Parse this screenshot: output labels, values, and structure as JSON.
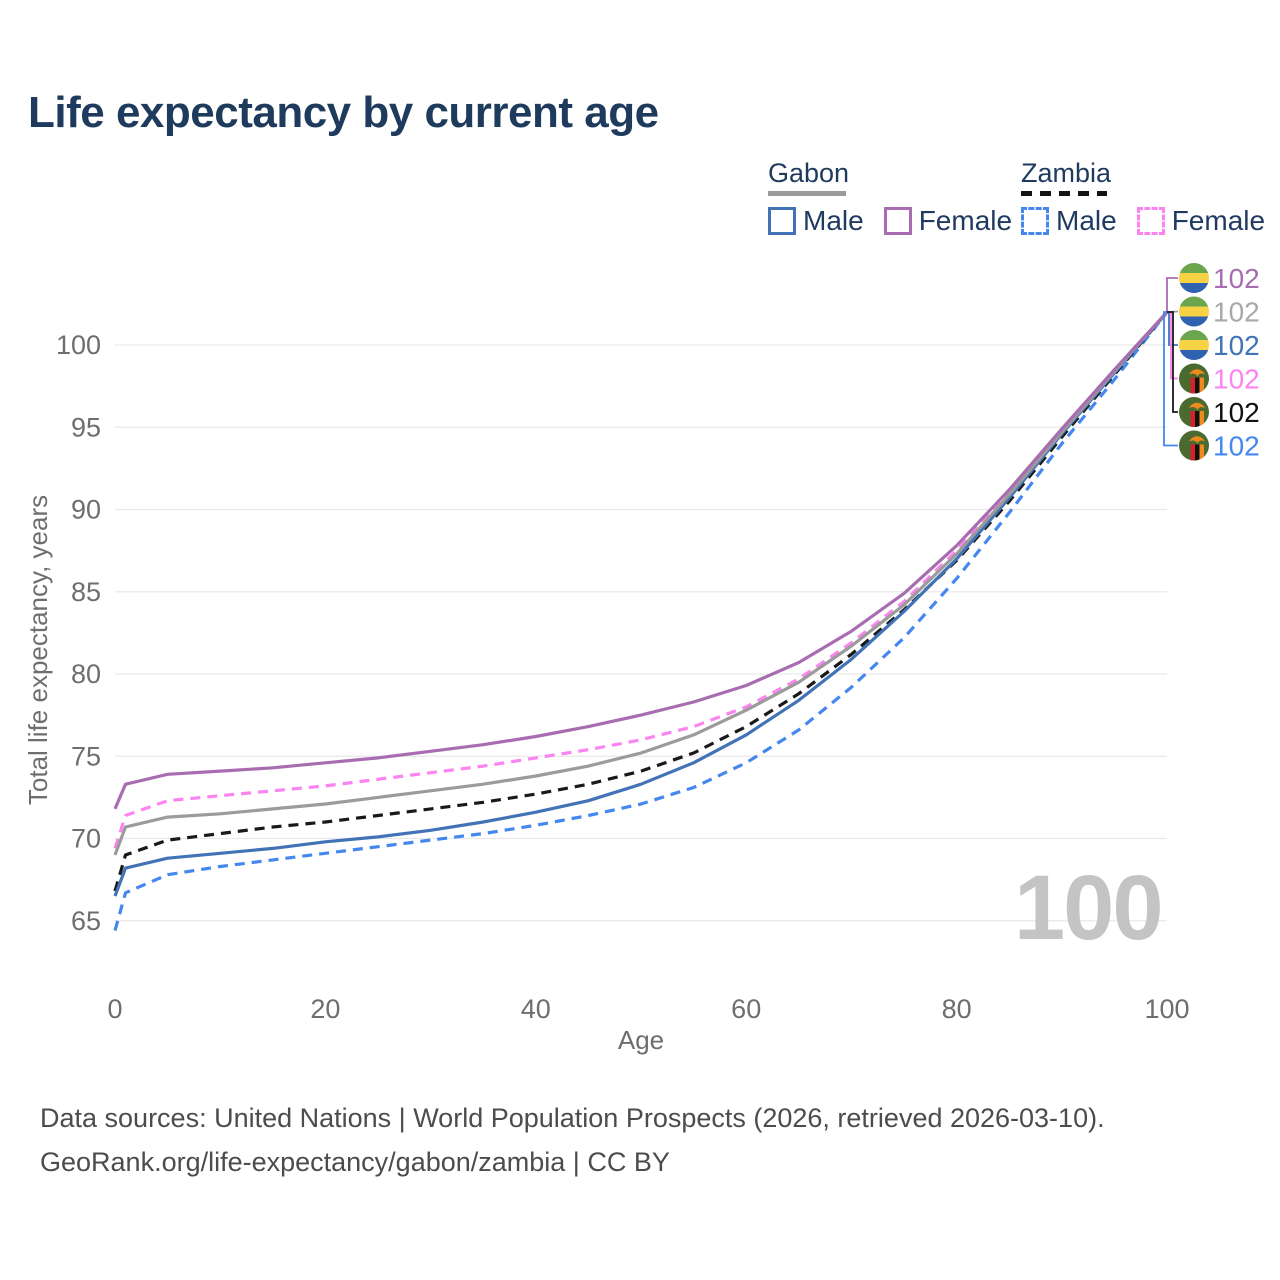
{
  "title": "Life expectancy by current age",
  "watermark": "100",
  "legend": {
    "groups": [
      {
        "name": "Gabon",
        "style": "solid",
        "items": [
          {
            "label": "Male"
          },
          {
            "label": "Female"
          }
        ]
      },
      {
        "name": "Zambia",
        "style": "dashed",
        "items": [
          {
            "label": "Male"
          },
          {
            "label": "Female"
          }
        ]
      }
    ]
  },
  "footer": {
    "line1": "Data sources: United Nations | World Population Prospects (2026, retrieved 2026-03-10).",
    "line2": "GeoRank.org/life-expectancy/gabon/zambia | CC BY"
  },
  "colors": {
    "title_text": "#1e3a5c",
    "axis_text": "#6e6e6e",
    "gridline": "#e9e9e9",
    "watermark": "#c4c4c4"
  },
  "chart_data": {
    "type": "line",
    "title": "Life expectancy by current age",
    "xlabel": "Age",
    "ylabel": "Total life expectancy, years",
    "xlim": [
      0,
      100
    ],
    "ylim": [
      63,
      104
    ],
    "x_ticks": [
      0,
      20,
      40,
      60,
      80,
      100
    ],
    "y_ticks": [
      65,
      70,
      75,
      80,
      85,
      90,
      95,
      100
    ],
    "grid": "horizontal",
    "legend_position": "top-right",
    "x": [
      0,
      1,
      5,
      10,
      15,
      20,
      25,
      30,
      35,
      40,
      45,
      50,
      55,
      60,
      65,
      70,
      75,
      80,
      85,
      90,
      95,
      100
    ],
    "series": [
      {
        "name": "Gabon Female",
        "country": "Gabon",
        "sex": "Female",
        "color": "#a86db1",
        "label_color": "#a86db1",
        "dashed": false,
        "end_label": "102",
        "flag": "gabon",
        "values": [
          71.8,
          73.3,
          73.9,
          74.1,
          74.3,
          74.6,
          74.9,
          75.3,
          75.7,
          76.2,
          76.8,
          77.5,
          78.3,
          79.3,
          80.7,
          82.6,
          84.9,
          87.8,
          91.2,
          94.9,
          98.5,
          102
        ]
      },
      {
        "name": "Gabon (both sexes)",
        "country": "Gabon",
        "sex": "Both",
        "color": "#9b9b9b",
        "label_color": "#a9a9a9",
        "dashed": false,
        "end_label": "102",
        "flag": "gabon",
        "values": [
          69.0,
          70.7,
          71.3,
          71.5,
          71.8,
          72.1,
          72.5,
          72.9,
          73.3,
          73.8,
          74.4,
          75.2,
          76.3,
          77.8,
          79.5,
          81.7,
          84.2,
          87.3,
          90.9,
          94.7,
          98.4,
          102
        ]
      },
      {
        "name": "Gabon Male",
        "country": "Gabon",
        "sex": "Male",
        "color": "#4273b6",
        "label_color": "#4273b6",
        "dashed": false,
        "end_label": "102",
        "flag": "gabon",
        "values": [
          66.5,
          68.2,
          68.8,
          69.1,
          69.4,
          69.8,
          70.1,
          70.5,
          71.0,
          71.6,
          72.3,
          73.3,
          74.6,
          76.3,
          78.4,
          80.9,
          83.8,
          87.0,
          90.7,
          94.6,
          98.3,
          102
        ]
      },
      {
        "name": "Zambia Female",
        "country": "Zambia",
        "sex": "Female",
        "color": "#fb84f0",
        "label_color": "#fb84f0",
        "dashed": true,
        "end_label": "102",
        "flag": "zambia",
        "values": [
          69.4,
          71.4,
          72.3,
          72.6,
          72.9,
          73.2,
          73.6,
          74.0,
          74.4,
          74.9,
          75.4,
          76.0,
          76.8,
          78.0,
          79.7,
          81.9,
          84.4,
          87.5,
          91.0,
          94.8,
          98.4,
          102
        ]
      },
      {
        "name": "Zambia (both sexes)",
        "country": "Zambia",
        "sex": "Both",
        "color": "#191919",
        "label_color": "#111111",
        "dashed": true,
        "end_label": "102",
        "flag": "zambia",
        "values": [
          66.8,
          69.0,
          69.9,
          70.3,
          70.7,
          71.0,
          71.4,
          71.8,
          72.2,
          72.7,
          73.3,
          74.1,
          75.2,
          76.8,
          78.8,
          81.2,
          83.9,
          86.9,
          90.5,
          94.4,
          98.2,
          102
        ]
      },
      {
        "name": "Zambia Male",
        "country": "Zambia",
        "sex": "Male",
        "color": "#4487ef",
        "label_color": "#4487ef",
        "dashed": true,
        "end_label": "102",
        "flag": "zambia",
        "values": [
          64.4,
          66.7,
          67.8,
          68.3,
          68.7,
          69.1,
          69.5,
          69.9,
          70.3,
          70.8,
          71.4,
          72.1,
          73.1,
          74.6,
          76.6,
          79.2,
          82.2,
          85.8,
          89.8,
          94.0,
          97.9,
          102
        ]
      }
    ]
  }
}
